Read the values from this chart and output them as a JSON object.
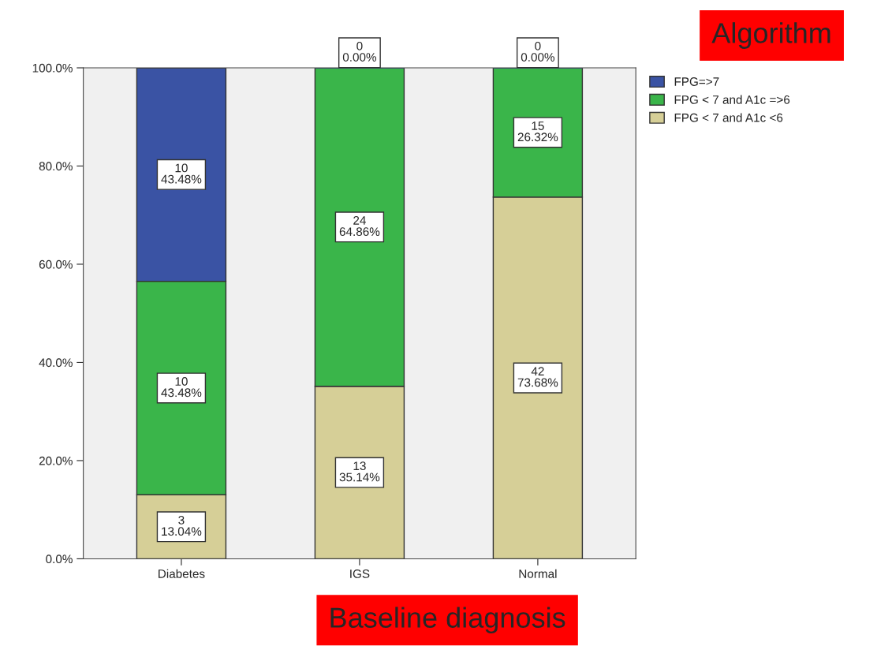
{
  "chart_data": {
    "type": "bar",
    "stacked": true,
    "xlabel": "Baseline diagnosis",
    "legend_title": "Algorithm",
    "categories": [
      "Diabetes",
      "IGS",
      "Normal"
    ],
    "series": [
      {
        "name": "FPG < 7 and A1c <6",
        "color": "#d6cf97",
        "values": [
          13.04,
          35.14,
          73.68
        ],
        "value_labels": [
          "3\n13.04%",
          "13\n35.14%",
          "42\n73.68%"
        ]
      },
      {
        "name": "FPG < 7 and A1c =>6",
        "color": "#3ab54a",
        "values": [
          43.48,
          64.86,
          26.32
        ],
        "value_labels": [
          "10\n43.48%",
          "24\n64.86%",
          "15\n26.32%"
        ]
      },
      {
        "name": "FPG=>7",
        "color": "#3a53a4",
        "values": [
          43.48,
          0,
          0
        ],
        "value_labels": [
          "10\n43.48%",
          "0\n0.00%",
          "0\n0.00%"
        ]
      }
    ],
    "ylim": [
      0,
      100
    ],
    "yticks": [
      {
        "value": 0,
        "label": "0.0%"
      },
      {
        "value": 20,
        "label": "20.0%"
      },
      {
        "value": 40,
        "label": "40.0%"
      },
      {
        "value": 60,
        "label": "60.0%"
      },
      {
        "value": 80,
        "label": "80.0%"
      },
      {
        "value": 100,
        "label": "100.0%"
      }
    ],
    "grid": false,
    "legend": "top right"
  }
}
